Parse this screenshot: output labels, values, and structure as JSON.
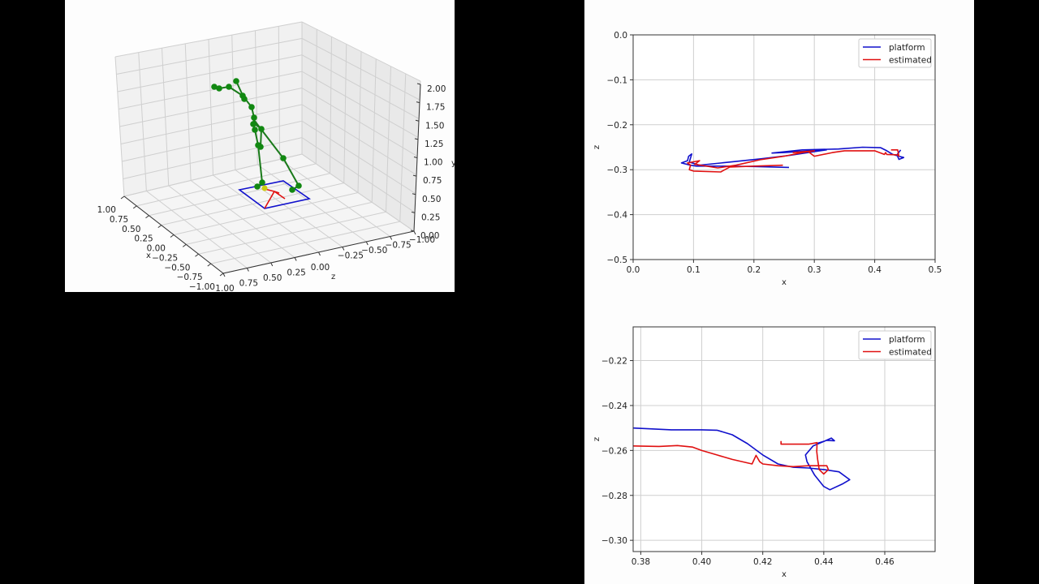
{
  "colors": {
    "platform": "#1010cc",
    "estimated": "#e01010",
    "skeleton": "#1a7a1a",
    "joint": "#118811",
    "root_marker": "#cccc10",
    "grid": "#c8c8c8",
    "background": "#fdfdfd"
  },
  "chart_data": [
    {
      "type": "scatter3d",
      "title": "",
      "xlabel": "x",
      "ylabel": "y",
      "zlabel": "z",
      "x_ticks": [
        "1.00",
        "0.75",
        "0.50",
        "0.25",
        "0.00",
        "−0.25",
        "−0.50",
        "−0.75",
        "−1.00"
      ],
      "z_ticks": [
        "1.00",
        "0.75",
        "0.50",
        "0.25",
        "0.00",
        "−0.25",
        "−0.50",
        "−0.75",
        "−1.00"
      ],
      "y_ticks": [
        "2.00",
        "1.75",
        "1.50",
        "1.25",
        "1.00",
        "0.75",
        "0.50",
        "0.25",
        "0.00"
      ],
      "xlim": [
        -1,
        1
      ],
      "ylim": [
        0,
        2
      ],
      "zlim": [
        -1,
        1
      ],
      "grid": true,
      "series": [
        {
          "name": "skeleton",
          "color": "#1a7a1a",
          "marker": "o"
        },
        {
          "name": "platform",
          "color": "#1010cc"
        },
        {
          "name": "estimated",
          "color": "#e01010"
        }
      ]
    },
    {
      "type": "line",
      "title": "",
      "xlabel": "x",
      "ylabel": "z",
      "xlim": [
        0.0,
        0.5
      ],
      "ylim": [
        -0.5,
        0.0
      ],
      "x_ticks": [
        "0.0",
        "0.1",
        "0.2",
        "0.3",
        "0.4",
        "0.5"
      ],
      "y_ticks": [
        "0.0",
        "−0.1",
        "−0.2",
        "−0.3",
        "−0.4",
        "−0.5"
      ],
      "grid": true,
      "legend_position": "upper right",
      "series": [
        {
          "name": "platform",
          "color": "#1010cc",
          "points": [
            [
              0.258,
              -0.295
            ],
            [
              0.2,
              -0.293
            ],
            [
              0.14,
              -0.292
            ],
            [
              0.105,
              -0.292
            ],
            [
              0.095,
              -0.29
            ],
            [
              0.08,
              -0.285
            ],
            [
              0.09,
              -0.28
            ],
            [
              0.092,
              -0.27
            ],
            [
              0.097,
              -0.265
            ],
            [
              0.093,
              -0.283
            ],
            [
              0.11,
              -0.29
            ],
            [
              0.16,
              -0.283
            ],
            [
              0.21,
              -0.276
            ],
            [
              0.26,
              -0.268
            ],
            [
              0.3,
              -0.26
            ],
            [
              0.32,
              -0.256
            ],
            [
              0.25,
              -0.262
            ],
            [
              0.23,
              -0.263
            ],
            [
              0.28,
              -0.256
            ],
            [
              0.34,
              -0.254
            ],
            [
              0.38,
              -0.25
            ],
            [
              0.41,
              -0.251
            ],
            [
              0.42,
              -0.258
            ],
            [
              0.43,
              -0.266
            ],
            [
              0.44,
              -0.27
            ],
            [
              0.448,
              -0.273
            ],
            [
              0.44,
              -0.277
            ],
            [
              0.437,
              -0.267
            ],
            [
              0.443,
              -0.256
            ]
          ]
        },
        {
          "name": "estimated",
          "color": "#e01010",
          "points": [
            [
              0.248,
              -0.29
            ],
            [
              0.2,
              -0.292
            ],
            [
              0.16,
              -0.294
            ],
            [
              0.145,
              -0.305
            ],
            [
              0.1,
              -0.303
            ],
            [
              0.093,
              -0.3
            ],
            [
              0.095,
              -0.29
            ],
            [
              0.09,
              -0.285
            ],
            [
              0.11,
              -0.28
            ],
            [
              0.102,
              -0.288
            ],
            [
              0.14,
              -0.296
            ],
            [
              0.17,
              -0.29
            ],
            [
              0.21,
              -0.278
            ],
            [
              0.25,
              -0.27
            ],
            [
              0.28,
              -0.262
            ],
            [
              0.3,
              -0.258
            ],
            [
              0.265,
              -0.262
            ],
            [
              0.29,
              -0.26
            ],
            [
              0.3,
              -0.27
            ],
            [
              0.33,
              -0.262
            ],
            [
              0.35,
              -0.258
            ],
            [
              0.4,
              -0.258
            ],
            [
              0.416,
              -0.266
            ],
            [
              0.418,
              -0.262
            ],
            [
              0.42,
              -0.266
            ],
            [
              0.438,
              -0.267
            ],
            [
              0.44,
              -0.27
            ],
            [
              0.438,
              -0.256
            ],
            [
              0.427,
              -0.256
            ]
          ]
        }
      ]
    },
    {
      "type": "line",
      "title": "",
      "xlabel": "x",
      "ylabel": "z",
      "xlim": [
        0.3775,
        0.4765
      ],
      "ylim": [
        -0.305,
        -0.205
      ],
      "x_ticks": [
        "0.38",
        "0.40",
        "0.42",
        "0.44",
        "0.46"
      ],
      "y_ticks": [
        "−0.22",
        "−0.24",
        "−0.26",
        "−0.28",
        "−0.30"
      ],
      "grid": true,
      "legend_position": "upper right",
      "series": [
        {
          "name": "platform",
          "color": "#1010cc",
          "points": [
            [
              0.3775,
              -0.25
            ],
            [
              0.39,
              -0.2508
            ],
            [
              0.4,
              -0.2508
            ],
            [
              0.405,
              -0.251
            ],
            [
              0.41,
              -0.253
            ],
            [
              0.415,
              -0.257
            ],
            [
              0.42,
              -0.262
            ],
            [
              0.425,
              -0.266
            ],
            [
              0.43,
              -0.2675
            ],
            [
              0.435,
              -0.2678
            ],
            [
              0.44,
              -0.2685
            ],
            [
              0.445,
              -0.2695
            ],
            [
              0.4485,
              -0.273
            ],
            [
              0.446,
              -0.275
            ],
            [
              0.442,
              -0.2775
            ],
            [
              0.44,
              -0.276
            ],
            [
              0.437,
              -0.271
            ],
            [
              0.4345,
              -0.265
            ],
            [
              0.434,
              -0.262
            ],
            [
              0.4365,
              -0.258
            ],
            [
              0.44,
              -0.256
            ],
            [
              0.4425,
              -0.2545
            ],
            [
              0.4435,
              -0.2557
            ],
            [
              0.441,
              -0.2555
            ],
            [
              0.4375,
              -0.257
            ]
          ]
        },
        {
          "name": "estimated",
          "color": "#e01010",
          "points": [
            [
              0.3775,
              -0.258
            ],
            [
              0.386,
              -0.2582
            ],
            [
              0.392,
              -0.2578
            ],
            [
              0.397,
              -0.2585
            ],
            [
              0.4,
              -0.26
            ],
            [
              0.405,
              -0.262
            ],
            [
              0.41,
              -0.264
            ],
            [
              0.4165,
              -0.266
            ],
            [
              0.4178,
              -0.2622
            ],
            [
              0.419,
              -0.265
            ],
            [
              0.42,
              -0.266
            ],
            [
              0.425,
              -0.2668
            ],
            [
              0.43,
              -0.2672
            ],
            [
              0.435,
              -0.2668
            ],
            [
              0.441,
              -0.2668
            ],
            [
              0.4415,
              -0.2685
            ],
            [
              0.44,
              -0.2705
            ],
            [
              0.4385,
              -0.2685
            ],
            [
              0.438,
              -0.264
            ],
            [
              0.4377,
              -0.2605
            ],
            [
              0.4378,
              -0.2565
            ],
            [
              0.435,
              -0.2572
            ],
            [
              0.426,
              -0.2572
            ],
            [
              0.426,
              -0.2558
            ]
          ]
        }
      ]
    }
  ]
}
